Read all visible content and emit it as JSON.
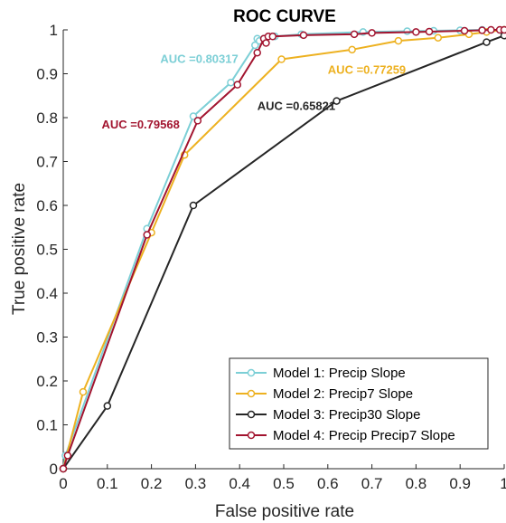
{
  "chart_data": {
    "type": "line",
    "title": "ROC CURVE",
    "xlabel": "False positive rate",
    "ylabel": "True positive rate",
    "xlim": [
      0,
      1
    ],
    "ylim": [
      0,
      1
    ],
    "xticks": [
      "0",
      "0.1",
      "0.2",
      "0.3",
      "0.4",
      "0.5",
      "0.6",
      "0.7",
      "0.8",
      "0.9",
      "1"
    ],
    "yticks": [
      "0",
      "0.1",
      "0.2",
      "0.3",
      "0.4",
      "0.5",
      "0.6",
      "0.7",
      "0.8",
      "0.9",
      "1"
    ],
    "grid": false,
    "legend_position": "bottom-right",
    "series": [
      {
        "name": "Model 1: Precip Slope",
        "color": "#7ccfd6",
        "x": [
          0,
          0.005,
          0.19,
          0.295,
          0.38,
          0.435,
          0.44,
          0.445,
          0.455,
          0.48,
          0.54,
          0.68,
          0.78,
          0.84,
          0.9,
          0.95,
          1.0
        ],
        "y": [
          0,
          0.03,
          0.547,
          0.803,
          0.88,
          0.965,
          0.98,
          0.975,
          0.98,
          0.985,
          0.99,
          0.995,
          0.997,
          0.998,
          0.999,
          1.0,
          1.0
        ]
      },
      {
        "name": "Model 2: Precip7 Slope",
        "color": "#edb120",
        "x": [
          0,
          0.045,
          0.2,
          0.275,
          0.495,
          0.655,
          0.76,
          0.85,
          0.92,
          0.96,
          1.0
        ],
        "y": [
          0,
          0.175,
          0.538,
          0.715,
          0.933,
          0.955,
          0.975,
          0.982,
          0.99,
          0.995,
          1.0
        ]
      },
      {
        "name": "Model 3: Precip30 Slope",
        "color": "#262626",
        "x": [
          0,
          0.1,
          0.295,
          0.62,
          0.96,
          1.0
        ],
        "y": [
          0,
          0.143,
          0.6,
          0.838,
          0.972,
          0.987
        ]
      },
      {
        "name": "Model 4: Precip Precip7 Slope",
        "color": "#a2142f",
        "x": [
          0,
          0.01,
          0.19,
          0.305,
          0.395,
          0.44,
          0.455,
          0.46,
          0.465,
          0.475,
          0.545,
          0.66,
          0.7,
          0.8,
          0.83,
          0.91,
          0.95,
          0.97,
          0.99,
          1.0
        ],
        "y": [
          0,
          0.03,
          0.533,
          0.793,
          0.875,
          0.948,
          0.98,
          0.97,
          0.985,
          0.985,
          0.988,
          0.99,
          0.993,
          0.995,
          0.996,
          0.998,
          0.999,
          1.0,
          1.0,
          1.0
        ]
      }
    ],
    "annotations": [
      {
        "text": "AUC =0.80317",
        "color": "#7ccfd6",
        "x": 0.22,
        "y": 0.925
      },
      {
        "text": "AUC =0.77259",
        "color": "#edb120",
        "x": 0.6,
        "y": 0.9
      },
      {
        "text": "AUC =0.65821",
        "color": "#262626",
        "x": 0.44,
        "y": 0.818
      },
      {
        "text": "AUC =0.79568",
        "color": "#a2142f",
        "x": 0.087,
        "y": 0.775
      }
    ]
  }
}
